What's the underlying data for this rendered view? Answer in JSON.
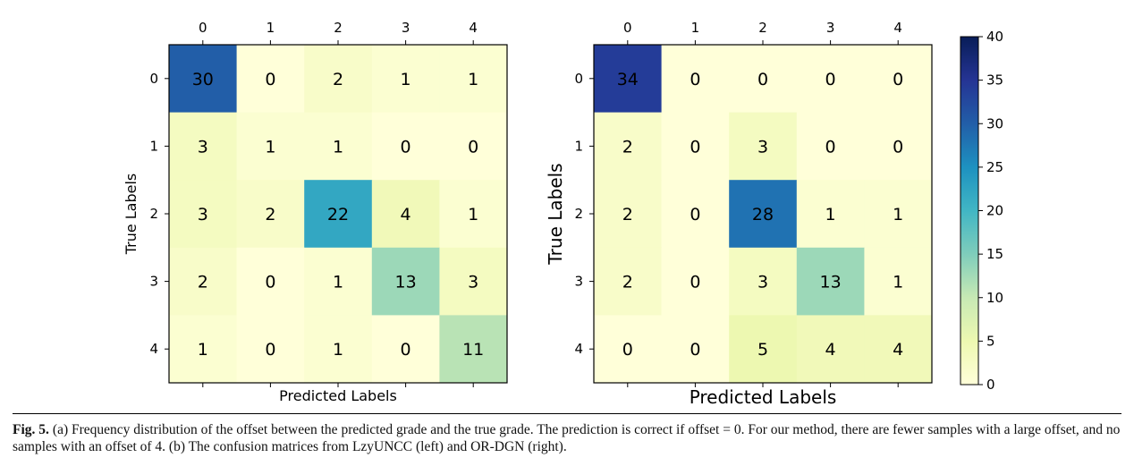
{
  "caption": {
    "label": "Fig. 5.",
    "text": "(a) Frequency distribution of the offset between the predicted grade and the true grade. The prediction is correct if offset = 0. For our method, there are fewer samples with a large offset, and no samples with an offset of 4. (b) The confusion matrices from LzyUNCC (left) and OR-DGN (right)."
  },
  "colormap": {
    "name": "YlGnBu",
    "stops": [
      "#ffffd9",
      "#edf8b1",
      "#c7e9b4",
      "#7fcdbb",
      "#41b6c4",
      "#1d91c0",
      "#225ea8",
      "#253494",
      "#081d58"
    ],
    "vmin": 0,
    "vmax": 40,
    "ticks": [
      "0",
      "5",
      "10",
      "15",
      "20",
      "25",
      "30",
      "35",
      "40"
    ]
  },
  "chart_data": [
    {
      "type": "heatmap",
      "title": "",
      "xlabel": "Predicted Labels",
      "ylabel": "True Labels",
      "x_ticks": [
        "0",
        "1",
        "2",
        "3",
        "4"
      ],
      "y_ticks": [
        "0",
        "1",
        "2",
        "3",
        "4"
      ],
      "values": [
        [
          30,
          0,
          2,
          1,
          1
        ],
        [
          3,
          1,
          1,
          0,
          0
        ],
        [
          3,
          2,
          22,
          4,
          1
        ],
        [
          2,
          0,
          1,
          13,
          3
        ],
        [
          1,
          0,
          1,
          0,
          11
        ]
      ]
    },
    {
      "type": "heatmap",
      "title": "",
      "xlabel": "Predicted Labels",
      "ylabel": "True Labels",
      "x_ticks": [
        "0",
        "1",
        "2",
        "3",
        "4"
      ],
      "y_ticks": [
        "0",
        "1",
        "2",
        "3",
        "4"
      ],
      "values": [
        [
          34,
          0,
          0,
          0,
          0
        ],
        [
          2,
          0,
          3,
          0,
          0
        ],
        [
          2,
          0,
          28,
          1,
          1
        ],
        [
          2,
          0,
          3,
          13,
          1
        ],
        [
          0,
          0,
          5,
          4,
          4
        ]
      ]
    }
  ]
}
